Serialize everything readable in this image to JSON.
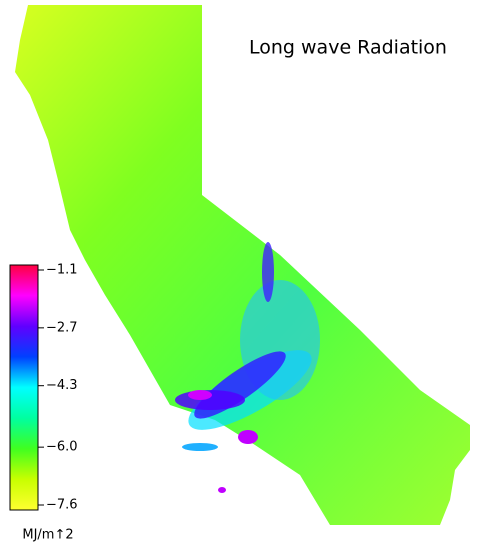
{
  "map": {
    "title": "Long wave Radiation",
    "colorbar": {
      "range": [
        -7.6,
        -1.1
      ],
      "ticks": [
        {
          "value": -1.1,
          "label": "−1.1"
        },
        {
          "value": -2.7,
          "label": "−2.7"
        },
        {
          "value": -4.3,
          "label": "−4.3"
        },
        {
          "value": -6,
          "label": "−6.0"
        },
        {
          "value": -7.6,
          "label": "−7.6"
        }
      ],
      "colors": [
        "#ffff30",
        "#c8ff00",
        "#40ff20",
        "#00ffa0",
        "#00ffff",
        "#0040ff",
        "#6000ff",
        "#ff00ff",
        "#ff0040"
      ],
      "unit": "MJ/m↑2"
    }
  }
}
